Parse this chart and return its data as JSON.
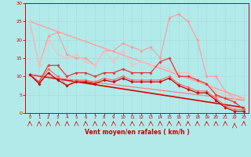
{
  "background_color": "#b2eaea",
  "grid_color": "#aadddd",
  "xlabel": "Vent moyen/en rafales ( km/h )",
  "xlabel_color": "#cc0000",
  "xlim": [
    -0.5,
    23.5
  ],
  "ylim": [
    0,
    30
  ],
  "yticks": [
    0,
    5,
    10,
    15,
    20,
    25,
    30
  ],
  "xticks": [
    0,
    1,
    2,
    3,
    4,
    5,
    6,
    7,
    8,
    9,
    10,
    11,
    12,
    13,
    14,
    15,
    16,
    17,
    18,
    19,
    20,
    21,
    22,
    23
  ],
  "arrow_angles": [
    200,
    210,
    215,
    200,
    205,
    210,
    200,
    205,
    210,
    200,
    205,
    200,
    210,
    205,
    200,
    195,
    190,
    195,
    200,
    200,
    205,
    200,
    185,
    170
  ],
  "series": [
    {
      "x": [
        0,
        1,
        2,
        3,
        4,
        5,
        6,
        7,
        8,
        9,
        10,
        11,
        12,
        13,
        14,
        15,
        16,
        17,
        18,
        19,
        20,
        21,
        22,
        23
      ],
      "y": [
        25,
        13,
        21,
        22,
        16,
        15,
        15,
        13,
        17,
        17,
        19,
        18,
        17,
        18,
        15,
        26,
        27,
        25,
        20,
        10,
        10,
        6,
        4,
        4
      ],
      "color": "#ff9999",
      "lw": 0.8,
      "marker": "D",
      "ms": 1.8,
      "zorder": 3
    },
    {
      "x": [
        0,
        1,
        2,
        3,
        4,
        5,
        6,
        7,
        8,
        9,
        10,
        11,
        12,
        13,
        14,
        15,
        16,
        17,
        18,
        19,
        20,
        21,
        22,
        23
      ],
      "y": [
        25,
        13,
        20,
        16,
        15,
        16,
        14,
        13,
        17,
        14,
        17,
        13,
        14,
        13,
        13,
        12,
        11,
        11,
        9,
        8,
        6,
        5,
        4,
        4
      ],
      "color": "#ffbbbb",
      "lw": 0.8,
      "marker": "D",
      "ms": 1.8,
      "zorder": 3
    },
    {
      "x": [
        0,
        1,
        2,
        3,
        4,
        5,
        6,
        7,
        8,
        9,
        10,
        11,
        12,
        13,
        14,
        15,
        16,
        17,
        18,
        19,
        20,
        21,
        22,
        23
      ],
      "y": [
        10.5,
        8.5,
        13,
        13,
        10,
        11,
        11,
        10,
        11,
        11,
        12,
        11,
        11,
        11,
        14,
        15,
        10,
        10,
        9,
        8,
        5,
        4,
        3,
        1
      ],
      "color": "#ee3333",
      "lw": 0.9,
      "marker": "D",
      "ms": 1.8,
      "zorder": 4
    },
    {
      "x": [
        0,
        1,
        2,
        3,
        4,
        5,
        6,
        7,
        8,
        9,
        10,
        11,
        12,
        13,
        14,
        15,
        16,
        17,
        18,
        19,
        20,
        21,
        22,
        23
      ],
      "y": [
        10.5,
        8,
        12,
        10,
        7.5,
        9,
        9,
        8.5,
        9.5,
        9,
        10,
        9,
        9,
        9,
        9,
        10,
        8,
        7,
        6,
        6,
        4,
        2,
        1,
        1
      ],
      "color": "#ff6666",
      "lw": 0.8,
      "marker": "D",
      "ms": 1.8,
      "zorder": 4
    },
    {
      "x": [
        0,
        1,
        2,
        3,
        4,
        5,
        6,
        7,
        8,
        9,
        10,
        11,
        12,
        13,
        14,
        15,
        16,
        17,
        18,
        19,
        20,
        21,
        22,
        23
      ],
      "y": [
        10.5,
        8,
        11,
        9,
        7.5,
        8.5,
        8.5,
        8,
        9,
        8.5,
        9.5,
        8.5,
        8.5,
        8.5,
        8.5,
        9.5,
        7.5,
        6.5,
        5.5,
        5.5,
        3.5,
        1.5,
        0.5,
        0.5
      ],
      "color": "#cc0000",
      "lw": 0.9,
      "marker": "D",
      "ms": 1.8,
      "zorder": 5
    },
    {
      "x": [
        0,
        23
      ],
      "y": [
        10.5,
        1.5
      ],
      "color": "#dd0000",
      "lw": 1.2,
      "marker": null,
      "zorder": 2
    },
    {
      "x": [
        0,
        23
      ],
      "y": [
        10.5,
        3.5
      ],
      "color": "#ff7777",
      "lw": 0.8,
      "marker": null,
      "zorder": 2
    },
    {
      "x": [
        0,
        23
      ],
      "y": [
        25,
        4
      ],
      "color": "#ffbbbb",
      "lw": 0.8,
      "marker": null,
      "zorder": 2
    },
    {
      "x": [
        0,
        23
      ],
      "y": [
        25,
        4
      ],
      "color": "#ff9999",
      "lw": 0.8,
      "marker": null,
      "zorder": 2
    }
  ]
}
